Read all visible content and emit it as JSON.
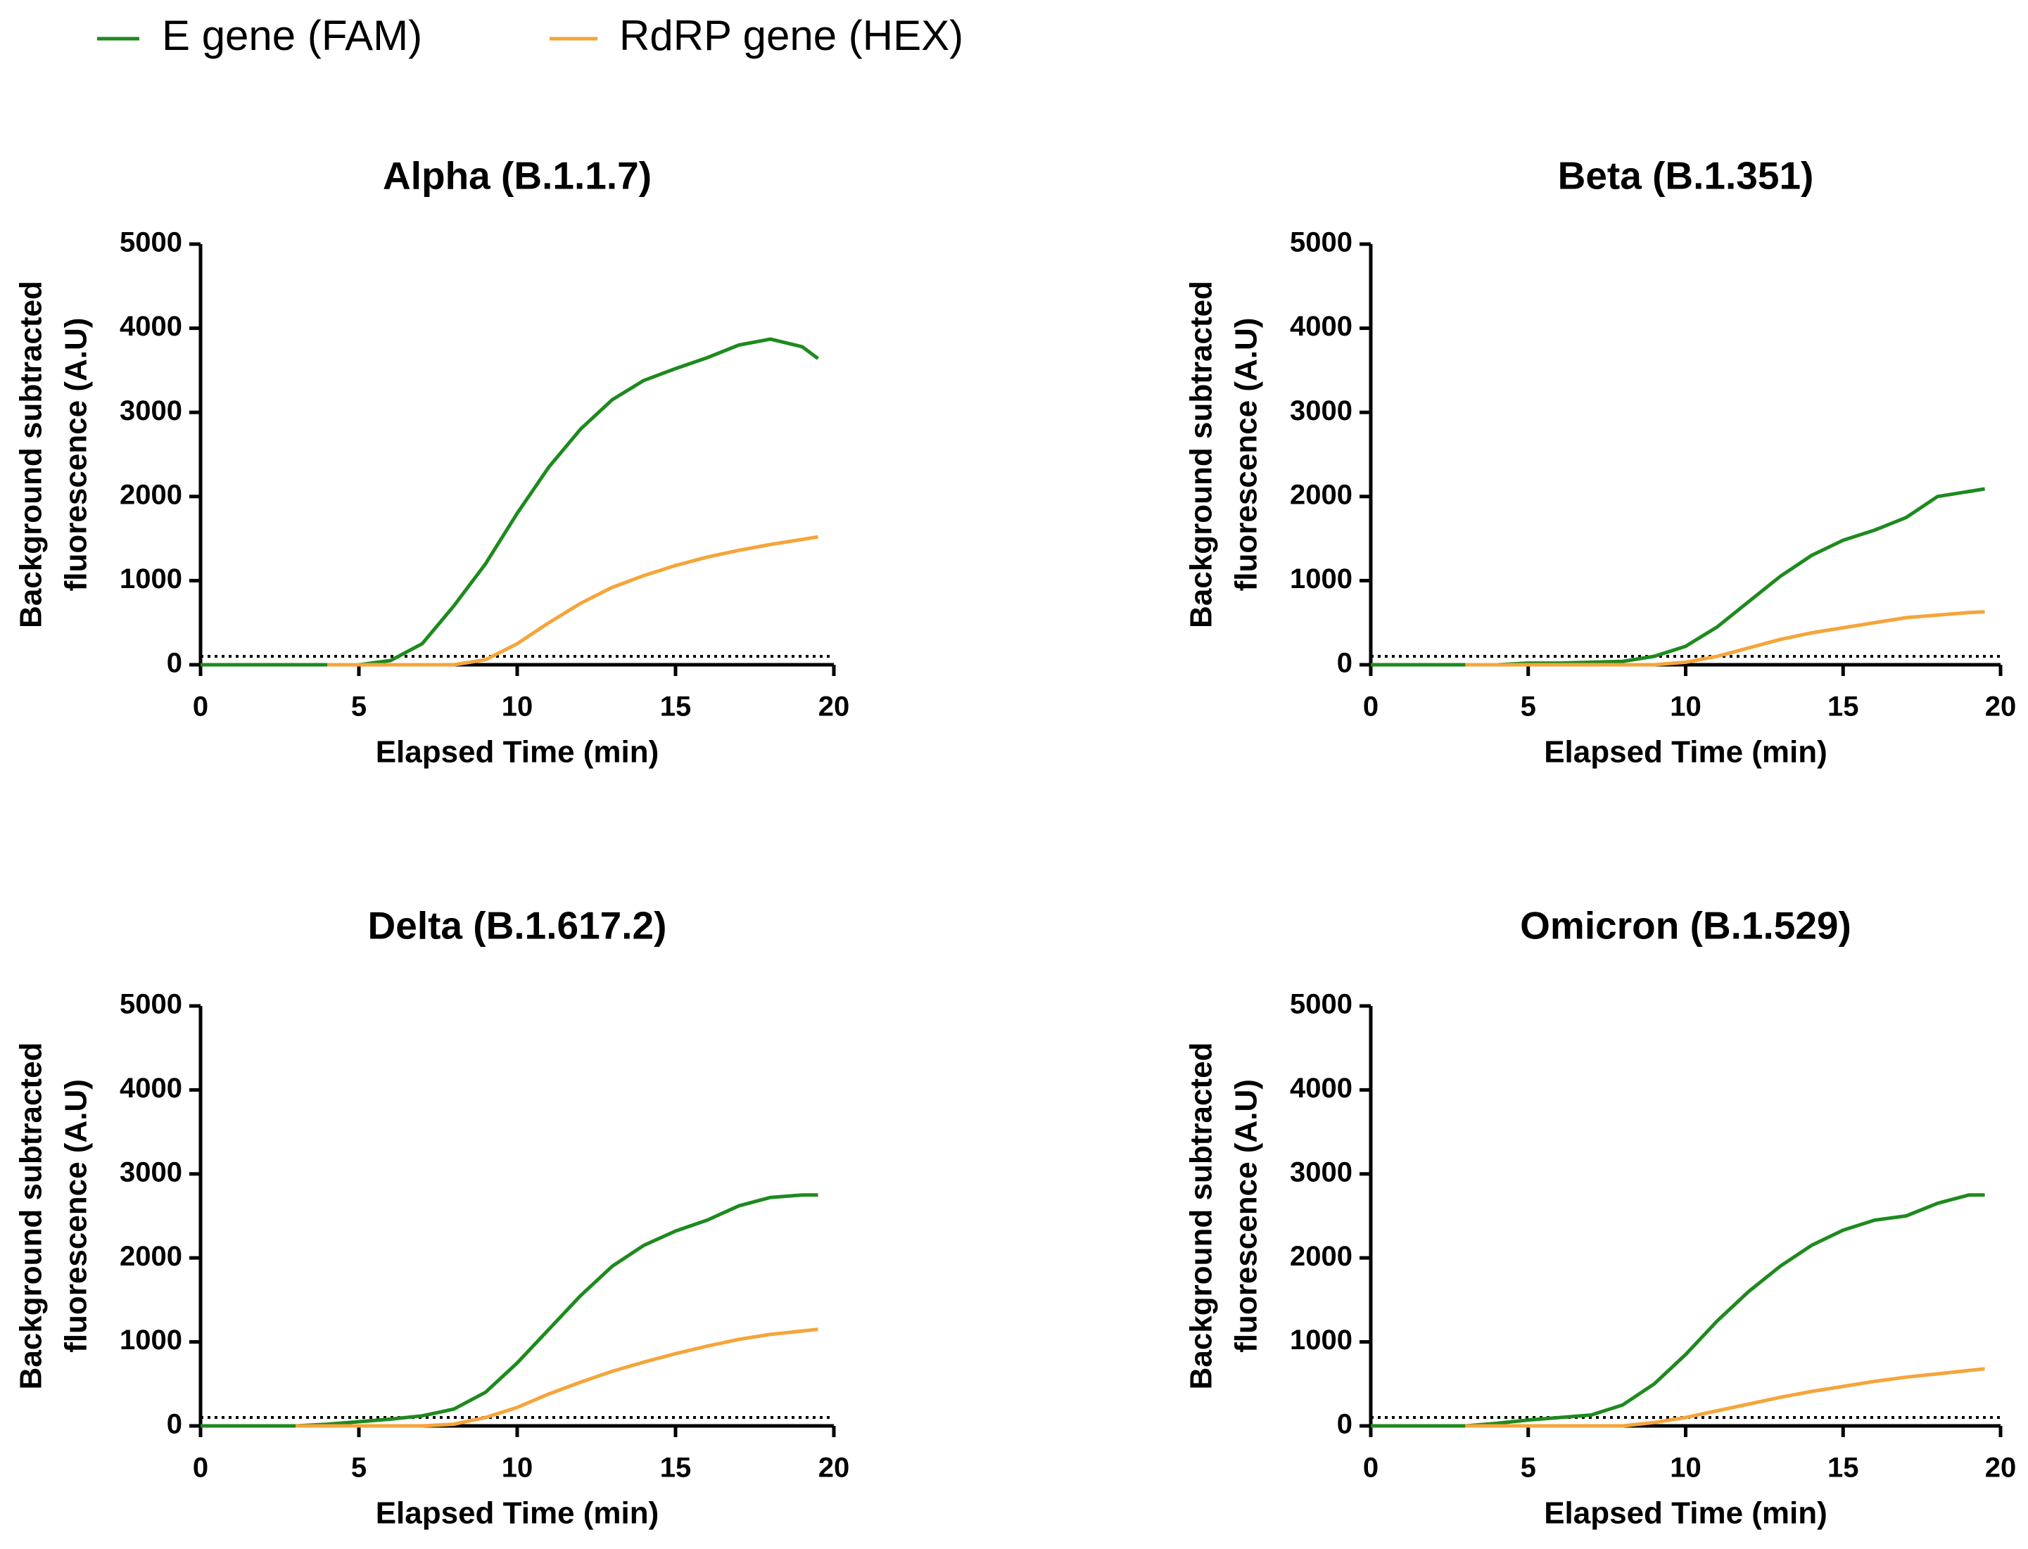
{
  "chart_data": [
    {
      "type": "line",
      "title": "Alpha (B.1.1.7)",
      "xlabel": "Elapsed Time (min)",
      "ylabel": [
        "Background subtracted",
        "fluorescence (A.U)"
      ],
      "x": [
        0,
        1,
        2,
        3,
        4,
        5,
        6,
        7,
        8,
        9,
        10,
        11,
        12,
        13,
        14,
        15,
        16,
        17,
        18,
        19,
        19.5
      ],
      "series": [
        {
          "name": "E gene (FAM)",
          "color": "#1e8a1e",
          "values": [
            0,
            0,
            0,
            0,
            0,
            0,
            50,
            250,
            700,
            1200,
            1800,
            2350,
            2800,
            3150,
            3380,
            3520,
            3650,
            3800,
            3870,
            3780,
            3640
          ]
        },
        {
          "name": "RdRP gene (HEX)",
          "color": "#f5a53a",
          "values": [
            null,
            null,
            null,
            null,
            0,
            0,
            0,
            0,
            0,
            60,
            250,
            500,
            730,
            920,
            1060,
            1180,
            1280,
            1360,
            1430,
            1490,
            1520
          ]
        }
      ],
      "threshold": 100,
      "xlim": [
        0,
        20
      ],
      "ylim": [
        0,
        5000
      ],
      "xticks": [
        0,
        5,
        10,
        15,
        20
      ],
      "yticks": [
        0,
        1000,
        2000,
        3000,
        4000,
        5000
      ]
    },
    {
      "type": "line",
      "title": "Beta (B.1.351)",
      "xlabel": "Elapsed Time (min)",
      "ylabel": [
        "Background subtracted",
        "fluorescence (A.U)"
      ],
      "x": [
        0,
        1,
        2,
        3,
        4,
        5,
        6,
        7,
        8,
        9,
        10,
        11,
        12,
        13,
        14,
        15,
        16,
        17,
        18,
        19,
        19.5
      ],
      "series": [
        {
          "name": "E gene (FAM)",
          "color": "#1e8a1e",
          "values": [
            0,
            0,
            0,
            0,
            0,
            20,
            20,
            30,
            40,
            100,
            220,
            450,
            750,
            1050,
            1300,
            1480,
            1600,
            1750,
            2000,
            2060,
            2090
          ]
        },
        {
          "name": "RdRP gene (HEX)",
          "color": "#f5a53a",
          "values": [
            null,
            null,
            null,
            0,
            0,
            0,
            0,
            0,
            0,
            0,
            30,
            100,
            200,
            300,
            380,
            440,
            500,
            560,
            590,
            620,
            630
          ]
        }
      ],
      "threshold": 100,
      "xlim": [
        0,
        20
      ],
      "ylim": [
        0,
        5000
      ],
      "xticks": [
        0,
        5,
        10,
        15,
        20
      ],
      "yticks": [
        0,
        1000,
        2000,
        3000,
        4000,
        5000
      ]
    },
    {
      "type": "line",
      "title": "Delta (B.1.617.2)",
      "xlabel": "Elapsed Time (min)",
      "ylabel": [
        "Background subtracted",
        "fluorescence (A.U)"
      ],
      "x": [
        0,
        1,
        2,
        3,
        4,
        5,
        6,
        7,
        8,
        9,
        10,
        11,
        12,
        13,
        14,
        15,
        16,
        17,
        18,
        19,
        19.5
      ],
      "series": [
        {
          "name": "E gene (FAM)",
          "color": "#1e8a1e",
          "values": [
            0,
            0,
            0,
            0,
            20,
            50,
            80,
            120,
            200,
            400,
            750,
            1150,
            1550,
            1900,
            2150,
            2320,
            2450,
            2620,
            2720,
            2750,
            2750
          ]
        },
        {
          "name": "RdRP gene (HEX)",
          "color": "#f5a53a",
          "values": [
            null,
            null,
            null,
            0,
            0,
            0,
            0,
            0,
            20,
            100,
            220,
            380,
            520,
            650,
            760,
            860,
            950,
            1030,
            1090,
            1130,
            1150
          ]
        }
      ],
      "threshold": 100,
      "xlim": [
        0,
        20
      ],
      "ylim": [
        0,
        5000
      ],
      "xticks": [
        0,
        5,
        10,
        15,
        20
      ],
      "yticks": [
        0,
        1000,
        2000,
        3000,
        4000,
        5000
      ]
    },
    {
      "type": "line",
      "title": "Omicron (B.1.529)",
      "xlabel": "Elapsed Time (min)",
      "ylabel": [
        "Background subtracted",
        "fluorescence (A.U)"
      ],
      "x": [
        0,
        1,
        2,
        3,
        4,
        5,
        6,
        7,
        8,
        9,
        10,
        11,
        12,
        13,
        14,
        15,
        16,
        17,
        18,
        19,
        19.5
      ],
      "series": [
        {
          "name": "E gene (FAM)",
          "color": "#1e8a1e",
          "values": [
            0,
            0,
            0,
            0,
            30,
            70,
            100,
            130,
            250,
            500,
            850,
            1250,
            1600,
            1900,
            2150,
            2330,
            2450,
            2500,
            2650,
            2750,
            2750
          ]
        },
        {
          "name": "RdRP gene (HEX)",
          "color": "#f5a53a",
          "values": [
            null,
            null,
            null,
            0,
            0,
            0,
            0,
            0,
            0,
            40,
            100,
            180,
            260,
            340,
            410,
            470,
            530,
            580,
            620,
            660,
            680
          ]
        }
      ],
      "threshold": 100,
      "xlim": [
        0,
        20
      ],
      "ylim": [
        0,
        5000
      ],
      "xticks": [
        0,
        5,
        10,
        15,
        20
      ],
      "yticks": [
        0,
        1000,
        2000,
        3000,
        4000,
        5000
      ]
    }
  ]
}
